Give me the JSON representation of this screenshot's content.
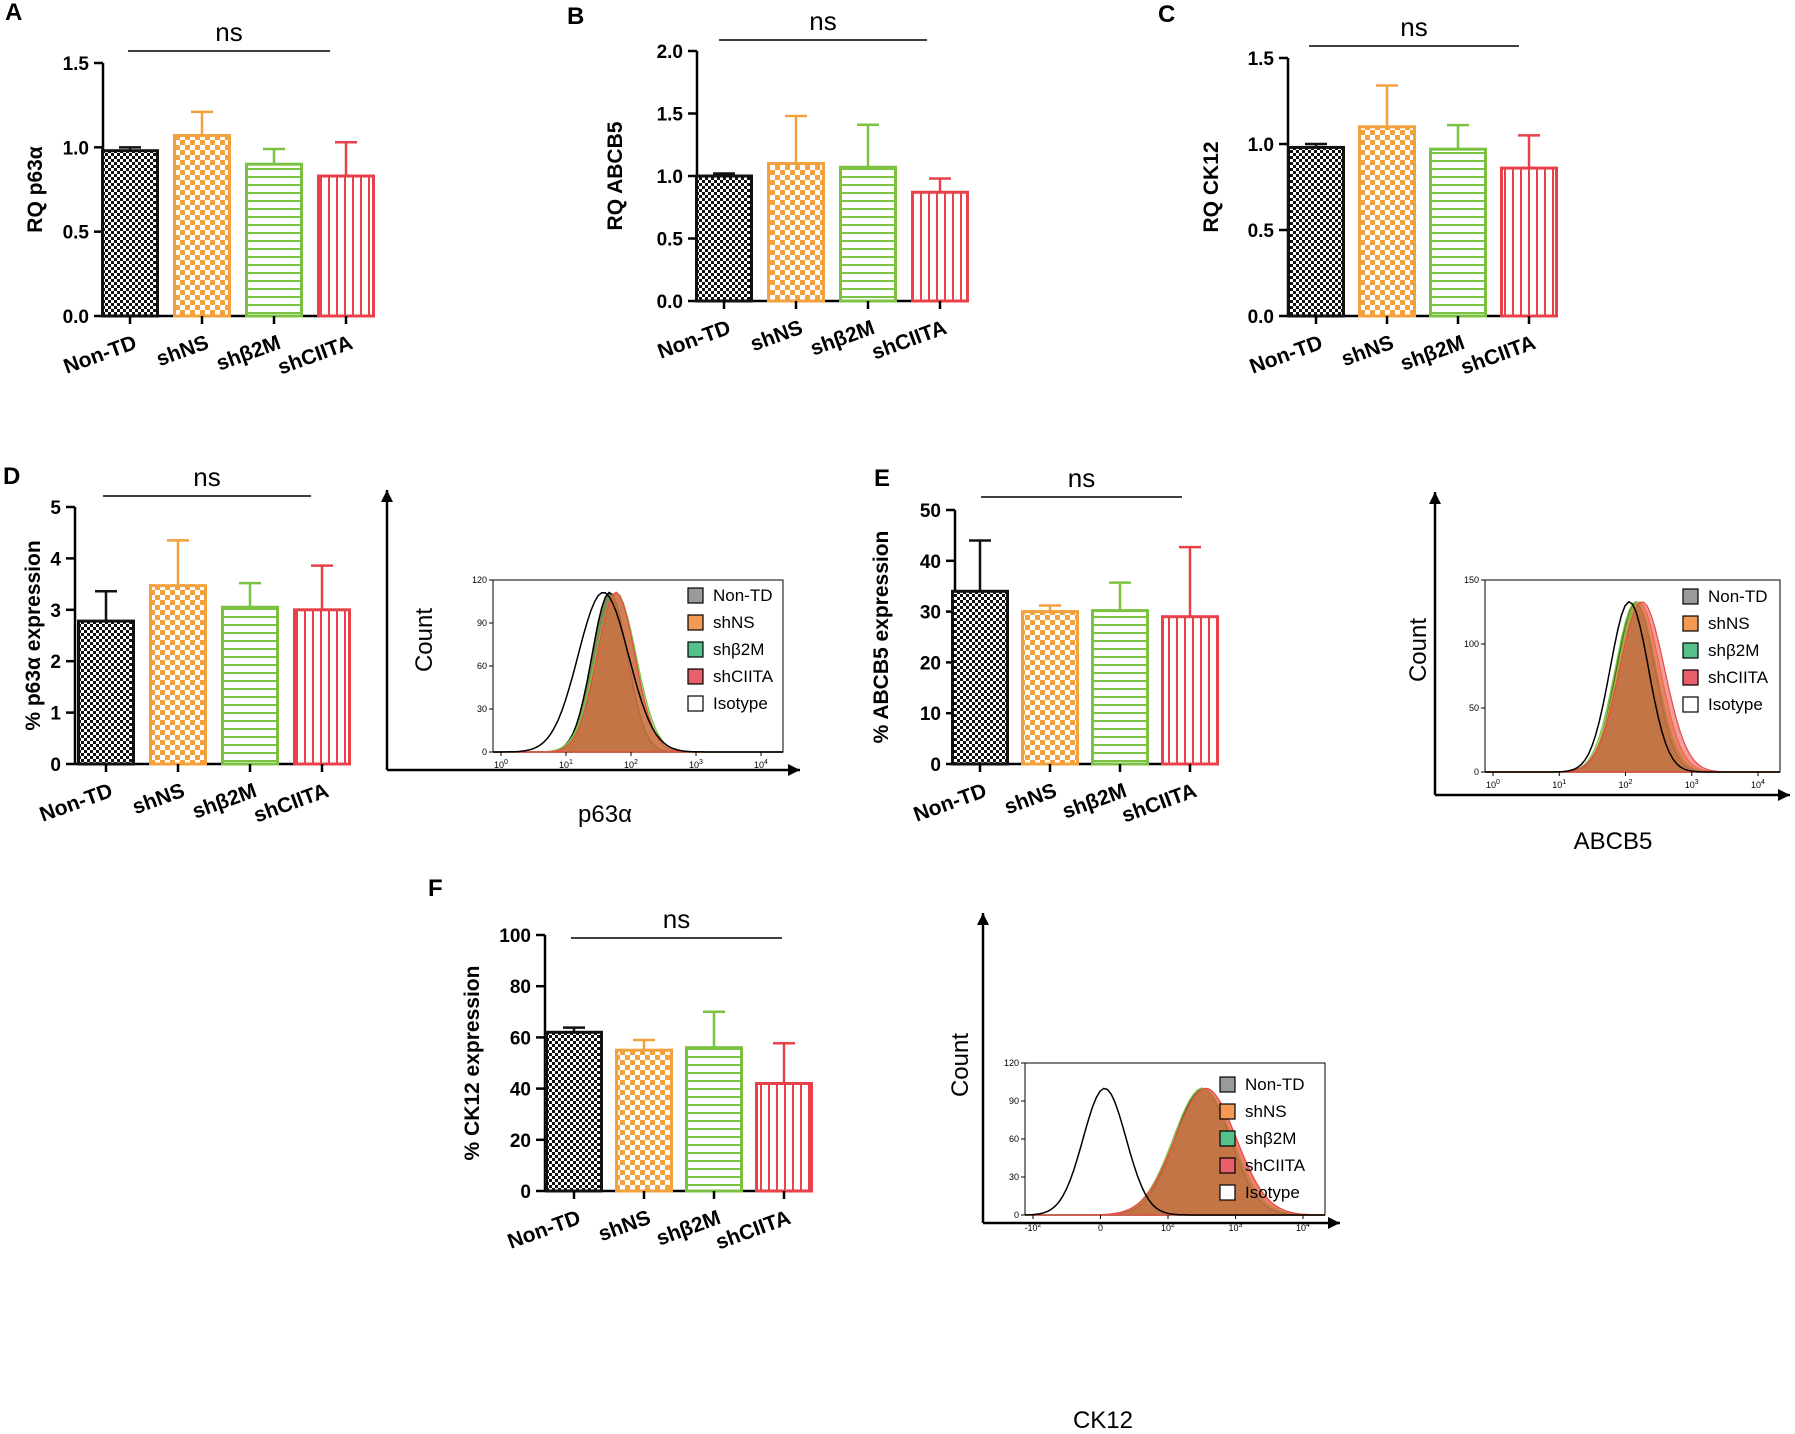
{
  "colors": {
    "black": "#111111",
    "orange": "#f2a13c",
    "green": "#7cc242",
    "red": "#e8414a",
    "olive": "#5e6b2a",
    "flow_green": "#7cc242",
    "flow_orange": "#f08c2e",
    "flow_red": "#e84a4a",
    "legend_gray": "#9a9a9a",
    "legend_orange": "#f39a55",
    "legend_green": "#55c08a",
    "legend_red": "#e8606a"
  },
  "icons": {
    "pattern_checker": "checker-pattern-icon",
    "pattern_horizontal": "horizontal-stripes-icon",
    "pattern_vertical": "vertical-stripes-icon"
  },
  "chart_data": [
    {
      "id": "A",
      "panel_label": "A",
      "type": "bar",
      "ylabel": "RQ p63α",
      "ylim": [
        0,
        1.5
      ],
      "yticks": [
        "0.0",
        "0.5",
        "1.0",
        "1.5"
      ],
      "significance": "ns",
      "categories": [
        "Non-TD",
        "shNS",
        "shβ2M",
        "shCIITA"
      ],
      "values": [
        0.98,
        1.07,
        0.9,
        0.83
      ],
      "errors": [
        0.02,
        0.14,
        0.09,
        0.2
      ]
    },
    {
      "id": "B",
      "panel_label": "B",
      "type": "bar",
      "ylabel": "RQ  ABCB5",
      "ylim": [
        0,
        2.0
      ],
      "yticks": [
        "0.0",
        "0.5",
        "1.0",
        "1.5",
        "2.0"
      ],
      "significance": "ns",
      "categories": [
        "Non-TD",
        "shNS",
        "shβ2M",
        "shCIITA"
      ],
      "values": [
        1.0,
        1.1,
        1.07,
        0.87
      ],
      "errors": [
        0.02,
        0.38,
        0.34,
        0.11
      ]
    },
    {
      "id": "C",
      "panel_label": "C",
      "type": "bar",
      "ylabel": "RQ CK12",
      "ylim": [
        0,
        1.5
      ],
      "yticks": [
        "0.0",
        "0.5",
        "1.0",
        "1.5"
      ],
      "significance": "ns",
      "categories": [
        "Non-TD",
        "shNS",
        "shβ2M",
        "shCIITA"
      ],
      "values": [
        0.98,
        1.1,
        0.97,
        0.86
      ],
      "errors": [
        0.02,
        0.24,
        0.14,
        0.19
      ]
    },
    {
      "id": "D",
      "panel_label": "D",
      "type": "bar",
      "ylabel": "% p63α expression",
      "ylim": [
        0,
        5
      ],
      "yticks": [
        "0",
        "1",
        "2",
        "3",
        "4",
        "5"
      ],
      "significance": "ns",
      "categories": [
        "Non-TD",
        "shNS",
        "shβ2M",
        "shCIITA"
      ],
      "values": [
        2.78,
        3.47,
        3.05,
        3.0
      ],
      "errors": [
        0.58,
        0.88,
        0.47,
        0.86
      ]
    },
    {
      "id": "E",
      "panel_label": "E",
      "type": "bar",
      "ylabel": "% ABCB5 expression",
      "ylim": [
        0,
        50
      ],
      "yticks": [
        "0",
        "10",
        "20",
        "30",
        "40",
        "50"
      ],
      "significance": "ns",
      "categories": [
        "Non-TD",
        "shNS",
        "shβ2M",
        "shCIITA"
      ],
      "values": [
        34.0,
        30.0,
        30.2,
        29.0
      ],
      "errors": [
        10.0,
        1.2,
        5.5,
        13.7
      ]
    },
    {
      "id": "F",
      "panel_label": "F",
      "type": "bar",
      "ylabel": "% CK12 expression",
      "ylim": [
        0,
        100
      ],
      "yticks": [
        "0",
        "20",
        "40",
        "60",
        "80",
        "100"
      ],
      "significance": "ns",
      "categories": [
        "Non-TD",
        "shNS",
        "shβ2M",
        "shCIITA"
      ],
      "values": [
        62.0,
        55.0,
        56.0,
        42.0
      ],
      "errors": [
        1.8,
        4.0,
        14.0,
        15.7
      ]
    },
    {
      "id": "D_flow",
      "type": "area",
      "xlabel": "p63α",
      "ylabel": "Count",
      "yticks": [
        "0",
        "30",
        "60",
        "90",
        "120"
      ],
      "xticks": [
        {
          "b": "10",
          "e": "0"
        },
        {
          "b": "10",
          "e": "1"
        },
        {
          "b": "10",
          "e": "2"
        },
        {
          "b": "10",
          "e": "3"
        },
        {
          "b": "10",
          "e": "4"
        }
      ],
      "legend": [
        "Non-TD",
        "shNS",
        "shβ2M",
        "shCIITA",
        "Isotype"
      ],
      "series_peaks": {
        "Non-TD": 1.45,
        "shNS": 1.55,
        "shβ2M": 1.55,
        "shCIITA": 1.55,
        "Isotype": 1.35
      },
      "series_widths": {
        "Non-TD": 0.28,
        "shNS": 0.3,
        "shβ2M": 0.32,
        "shCIITA": 0.3,
        "Isotype": 0.4
      },
      "peak_count": 116
    },
    {
      "id": "E_flow",
      "type": "area",
      "xlabel": "ABCB5",
      "ylabel": "Count",
      "yticks": [
        "0",
        "50",
        "100",
        "150"
      ],
      "xticks": [
        {
          "b": "10",
          "e": "0"
        },
        {
          "b": "10",
          "e": "1"
        },
        {
          "b": "10",
          "e": "2"
        },
        {
          "b": "10",
          "e": "3"
        },
        {
          "b": "10",
          "e": "4"
        }
      ],
      "legend": [
        "Non-TD",
        "shNS",
        "shβ2M",
        "shCIITA",
        "Isotype"
      ],
      "series_peaks": {
        "Non-TD": 1.95,
        "shNS": 2.0,
        "shβ2M": 1.95,
        "shCIITA": 2.05,
        "Isotype": 1.85
      },
      "series_widths": {
        "Non-TD": 0.3,
        "shNS": 0.33,
        "shβ2M": 0.32,
        "shCIITA": 0.35,
        "Isotype": 0.3
      },
      "peak_count": 133
    },
    {
      "id": "F_flow",
      "type": "area",
      "xlabel": "CK12",
      "ylabel": "Count",
      "yticks": [
        "0",
        "30",
        "60",
        "90",
        "120"
      ],
      "xticks": [
        {
          "b": "-10",
          "e": "2"
        },
        {
          "b": "0",
          "e": ""
        },
        {
          "b": "10",
          "e": "2"
        },
        {
          "b": "10",
          "e": "3"
        },
        {
          "b": "10",
          "e": "4"
        }
      ],
      "legend": [
        "Non-TD",
        "shNS",
        "shβ2M",
        "shCIITA",
        "Isotype"
      ],
      "series_peaks": {
        "Non-TD": 2.3,
        "shNS": 2.35,
        "shβ2M": 2.3,
        "shCIITA": 2.35,
        "Isotype": 0.7
      },
      "series_widths": {
        "Non-TD": 0.45,
        "shNS": 0.5,
        "shβ2M": 0.48,
        "shCIITA": 0.5,
        "Isotype": 0.35
      },
      "peak_count": 100
    }
  ]
}
